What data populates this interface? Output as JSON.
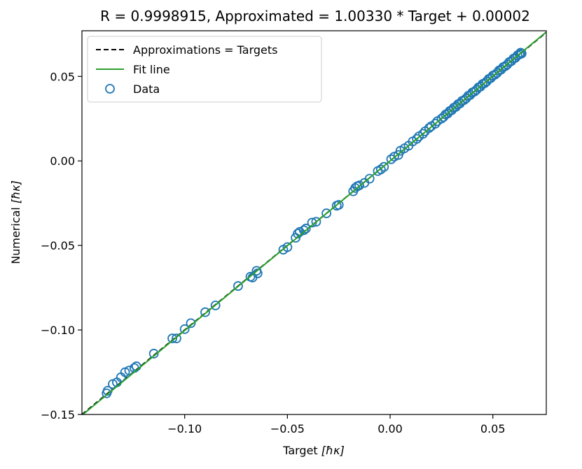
{
  "chart_data": {
    "type": "scatter",
    "title": "R = 0.9998915, Approximated = 1.00330 * Target + 0.00002",
    "xlabel_main": "Target ",
    "xlabel_unit": "[ħκ]",
    "ylabel_main": "Numerical ",
    "ylabel_unit": "[ħκ]",
    "xlim": [
      -0.15,
      0.076
    ],
    "ylim": [
      -0.15,
      0.077
    ],
    "xticks": [
      -0.1,
      -0.05,
      0.0,
      0.05
    ],
    "xtick_labels": [
      "−0.10",
      "−0.05",
      "0.00",
      "0.05"
    ],
    "yticks": [
      -0.15,
      -0.1,
      -0.05,
      0.0,
      0.05
    ],
    "ytick_labels": [
      "−0.15",
      "−0.10",
      "−0.05",
      "0.00",
      "0.05"
    ],
    "grid": false,
    "legend_position": "top-left",
    "legend": [
      "Approximations = Targets",
      "Fit line",
      "Data"
    ],
    "fit": {
      "slope": 1.0033,
      "intercept": 2e-05
    },
    "colors": {
      "identity": "#000000",
      "fit": "#2ca02c",
      "data": "#1f77b4"
    },
    "series": [
      {
        "name": "Data",
        "points": [
          [
            -0.138,
            -0.1375
          ],
          [
            -0.1375,
            -0.136
          ],
          [
            -0.135,
            -0.132
          ],
          [
            -0.133,
            -0.131
          ],
          [
            -0.131,
            -0.128
          ],
          [
            -0.129,
            -0.125
          ],
          [
            -0.127,
            -0.124
          ],
          [
            -0.1245,
            -0.1225
          ],
          [
            -0.1235,
            -0.1215
          ],
          [
            -0.115,
            -0.114
          ],
          [
            -0.106,
            -0.105
          ],
          [
            -0.104,
            -0.105
          ],
          [
            -0.1,
            -0.0995
          ],
          [
            -0.097,
            -0.096
          ],
          [
            -0.09,
            -0.0895
          ],
          [
            -0.085,
            -0.0855
          ],
          [
            -0.074,
            -0.074
          ],
          [
            -0.068,
            -0.0685
          ],
          [
            -0.067,
            -0.069
          ],
          [
            -0.065,
            -0.065
          ],
          [
            -0.0645,
            -0.0665
          ],
          [
            -0.052,
            -0.0525
          ],
          [
            -0.05,
            -0.051
          ],
          [
            -0.046,
            -0.0455
          ],
          [
            -0.045,
            -0.043
          ],
          [
            -0.044,
            -0.042
          ],
          [
            -0.042,
            -0.041
          ],
          [
            -0.041,
            -0.04
          ],
          [
            -0.038,
            -0.0365
          ],
          [
            -0.036,
            -0.036
          ],
          [
            -0.031,
            -0.031
          ],
          [
            -0.026,
            -0.0265
          ],
          [
            -0.025,
            -0.026
          ],
          [
            -0.018,
            -0.018
          ],
          [
            -0.017,
            -0.016
          ],
          [
            -0.016,
            -0.015
          ],
          [
            -0.015,
            -0.0145
          ],
          [
            -0.0125,
            -0.013
          ],
          [
            -0.01,
            -0.0105
          ],
          [
            -0.006,
            -0.006
          ],
          [
            -0.0045,
            -0.005
          ],
          [
            -0.003,
            -0.0035
          ],
          [
            0.0005,
            0.001
          ],
          [
            0.002,
            0.0025
          ],
          [
            0.004,
            0.0035
          ],
          [
            0.005,
            0.006
          ],
          [
            0.007,
            0.0075
          ],
          [
            0.009,
            0.009
          ],
          [
            0.011,
            0.0115
          ],
          [
            0.013,
            0.013
          ],
          [
            0.014,
            0.0145
          ],
          [
            0.016,
            0.016
          ],
          [
            0.017,
            0.0175
          ],
          [
            0.019,
            0.0195
          ],
          [
            0.02,
            0.0205
          ],
          [
            0.022,
            0.022
          ],
          [
            0.023,
            0.0235
          ],
          [
            0.025,
            0.025
          ],
          [
            0.026,
            0.026
          ],
          [
            0.027,
            0.0275
          ],
          [
            0.028,
            0.028
          ],
          [
            0.029,
            0.0295
          ],
          [
            0.03,
            0.03
          ],
          [
            0.031,
            0.0315
          ],
          [
            0.032,
            0.032
          ],
          [
            0.033,
            0.0335
          ],
          [
            0.034,
            0.034
          ],
          [
            0.035,
            0.0355
          ],
          [
            0.036,
            0.036
          ],
          [
            0.037,
            0.037
          ],
          [
            0.038,
            0.0385
          ],
          [
            0.039,
            0.039
          ],
          [
            0.04,
            0.0405
          ],
          [
            0.041,
            0.041
          ],
          [
            0.042,
            0.042
          ],
          [
            0.043,
            0.0435
          ],
          [
            0.044,
            0.044
          ],
          [
            0.045,
            0.0455
          ],
          [
            0.046,
            0.046
          ],
          [
            0.047,
            0.047
          ],
          [
            0.048,
            0.0485
          ],
          [
            0.049,
            0.049
          ],
          [
            0.05,
            0.0505
          ],
          [
            0.051,
            0.051
          ],
          [
            0.052,
            0.052
          ],
          [
            0.053,
            0.0535
          ],
          [
            0.054,
            0.054
          ],
          [
            0.055,
            0.0555
          ],
          [
            0.056,
            0.056
          ],
          [
            0.057,
            0.057
          ],
          [
            0.058,
            0.0585
          ],
          [
            0.059,
            0.059
          ],
          [
            0.06,
            0.0605
          ],
          [
            0.061,
            0.061
          ],
          [
            0.062,
            0.0625
          ],
          [
            0.063,
            0.063
          ],
          [
            0.0635,
            0.064
          ],
          [
            0.064,
            0.0635
          ]
        ]
      }
    ]
  }
}
